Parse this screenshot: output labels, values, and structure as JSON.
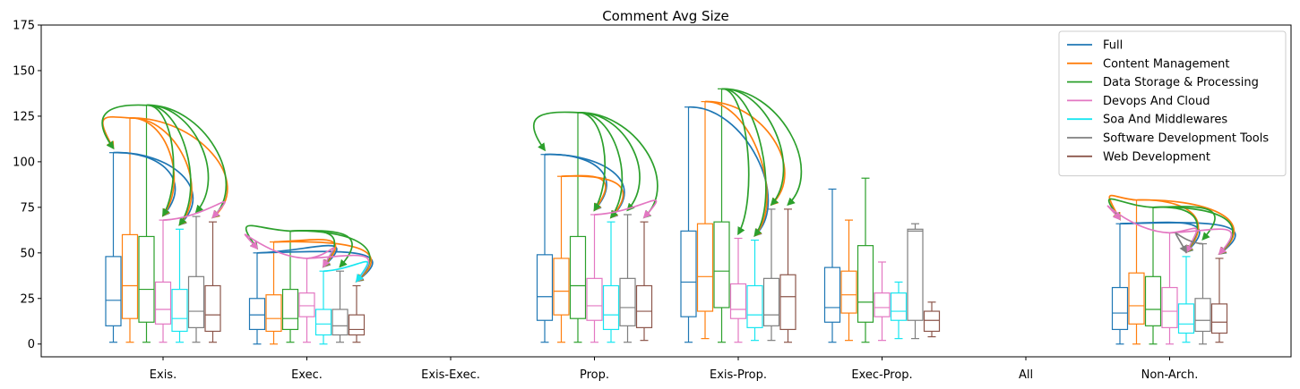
{
  "chart_data": {
    "type": "box",
    "title": "Comment Avg Size",
    "xlabel": "",
    "ylabel": "",
    "ylim": [
      -7,
      175
    ],
    "yticks": [
      0,
      25,
      50,
      75,
      100,
      125,
      150,
      175
    ],
    "grid": false,
    "legend_position": "top-right",
    "categories": [
      "Exis.",
      "Exec.",
      "Exis-Exec.",
      "Prop.",
      "Exis-Prop.",
      "Exec-Prop.",
      "All",
      "Non-Arch."
    ],
    "series": [
      {
        "name": "Full",
        "color": "#1f77b4",
        "boxes": [
          {
            "min": 1,
            "q1": 10,
            "median": 24,
            "q3": 48,
            "max": 105
          },
          {
            "min": 0,
            "q1": 8,
            "median": 16,
            "q3": 25,
            "max": 50
          },
          null,
          {
            "min": 1,
            "q1": 13,
            "median": 26,
            "q3": 49,
            "max": 104
          },
          {
            "min": 1,
            "q1": 15,
            "median": 34,
            "q3": 62,
            "max": 130
          },
          {
            "min": 1,
            "q1": 12,
            "median": 20,
            "q3": 42,
            "max": 85
          },
          null,
          {
            "min": 0,
            "q1": 8,
            "median": 17,
            "q3": 31,
            "max": 66
          }
        ]
      },
      {
        "name": "Content Management",
        "color": "#ff7f0e",
        "boxes": [
          {
            "min": 1,
            "q1": 14,
            "median": 32,
            "q3": 60,
            "max": 124
          },
          {
            "min": 0,
            "q1": 7,
            "median": 14,
            "q3": 27,
            "max": 56
          },
          null,
          {
            "min": 1,
            "q1": 16,
            "median": 29,
            "q3": 47,
            "max": 92
          },
          {
            "min": 3,
            "q1": 18,
            "median": 37,
            "q3": 66,
            "max": 133
          },
          {
            "min": 2,
            "q1": 17,
            "median": 27,
            "q3": 40,
            "max": 68
          },
          null,
          {
            "min": 0,
            "q1": 11,
            "median": 21,
            "q3": 39,
            "max": 79
          }
        ]
      },
      {
        "name": "Data Storage & Processing",
        "color": "#2ca02c",
        "boxes": [
          {
            "min": 1,
            "q1": 12,
            "median": 30,
            "q3": 59,
            "max": 131
          },
          {
            "min": 1,
            "q1": 8,
            "median": 14,
            "q3": 30,
            "max": 62
          },
          null,
          {
            "min": 1,
            "q1": 14,
            "median": 32,
            "q3": 59,
            "max": 127
          },
          {
            "min": 1,
            "q1": 20,
            "median": 40,
            "q3": 67,
            "max": 140
          },
          {
            "min": 1,
            "q1": 12,
            "median": 23,
            "q3": 54,
            "max": 91
          },
          null,
          {
            "min": 0,
            "q1": 10,
            "median": 19,
            "q3": 37,
            "max": 75
          }
        ]
      },
      {
        "name": "Devops And Cloud",
        "color": "#e377c2",
        "boxes": [
          {
            "min": 1,
            "q1": 11,
            "median": 19,
            "q3": 34,
            "max": 68
          },
          {
            "min": 1,
            "q1": 15,
            "median": 21,
            "q3": 28,
            "max": 47
          },
          null,
          {
            "min": 1,
            "q1": 13,
            "median": 21,
            "q3": 36,
            "max": 71
          },
          {
            "min": 1,
            "q1": 14,
            "median": 19,
            "q3": 33,
            "max": 58
          },
          {
            "min": 2,
            "q1": 15,
            "median": 20,
            "q3": 28,
            "max": 45
          },
          null,
          {
            "min": 0,
            "q1": 9,
            "median": 18,
            "q3": 31,
            "max": 61
          }
        ]
      },
      {
        "name": "Soa And Middlewares",
        "color": "#17e6f0",
        "boxes": [
          {
            "min": 1,
            "q1": 7,
            "median": 14,
            "q3": 30,
            "max": 63
          },
          {
            "min": 0,
            "q1": 5,
            "median": 11,
            "q3": 19,
            "max": 40
          },
          null,
          {
            "min": 1,
            "q1": 8,
            "median": 16,
            "q3": 32,
            "max": 67
          },
          {
            "min": 2,
            "q1": 9,
            "median": 16,
            "q3": 32,
            "max": 57
          },
          {
            "min": 3,
            "q1": 13,
            "median": 18,
            "q3": 28,
            "max": 34
          },
          null,
          {
            "min": 1,
            "q1": 6,
            "median": 11,
            "q3": 22,
            "max": 48
          }
        ]
      },
      {
        "name": "Software Development Tools",
        "color": "#7f7f7f",
        "boxes": [
          {
            "min": 1,
            "q1": 9,
            "median": 18,
            "q3": 37,
            "max": 70
          },
          {
            "min": 1,
            "q1": 5,
            "median": 10,
            "q3": 19,
            "max": 40
          },
          null,
          {
            "min": 1,
            "q1": 10,
            "median": 20,
            "q3": 36,
            "max": 71
          },
          {
            "min": 2,
            "q1": 10,
            "median": 16,
            "q3": 36,
            "max": 74
          },
          {
            "min": 3,
            "q1": 13,
            "median": 62,
            "q3": 63,
            "max": 66
          },
          null,
          {
            "min": 0,
            "q1": 7,
            "median": 13,
            "q3": 25,
            "max": 55
          }
        ]
      },
      {
        "name": "Web Development",
        "color": "#8c564b",
        "boxes": [
          {
            "min": 1,
            "q1": 7,
            "median": 16,
            "q3": 32,
            "max": 67
          },
          {
            "min": 1,
            "q1": 5,
            "median": 8,
            "q3": 16,
            "max": 32
          },
          null,
          {
            "min": 2,
            "q1": 9,
            "median": 18,
            "q3": 32,
            "max": 67
          },
          {
            "min": 1,
            "q1": 8,
            "median": 26,
            "q3": 38,
            "max": 74
          },
          {
            "min": 4,
            "q1": 7,
            "median": 13,
            "q3": 18,
            "max": 23
          },
          null,
          {
            "min": 1,
            "q1": 6,
            "median": 12,
            "q3": 22,
            "max": 47
          }
        ]
      }
    ],
    "arrows": [
      {
        "category": "Exis.",
        "from": 0,
        "to": 3
      },
      {
        "category": "Exis.",
        "from": 0,
        "to": 4
      },
      {
        "category": "Exis.",
        "from": 1,
        "to": 0
      },
      {
        "category": "Exis.",
        "from": 1,
        "to": 3
      },
      {
        "category": "Exis.",
        "from": 1,
        "to": 4
      },
      {
        "category": "Exis.",
        "from": 1,
        "to": 6
      },
      {
        "category": "Exis.",
        "from": 2,
        "to": 0
      },
      {
        "category": "Exis.",
        "from": 2,
        "to": 3
      },
      {
        "category": "Exis.",
        "from": 2,
        "to": 4
      },
      {
        "category": "Exis.",
        "from": 2,
        "to": 5
      },
      {
        "category": "Exis.",
        "from": 2,
        "to": 6
      },
      {
        "category": "Exis.",
        "from": 3,
        "to": 6
      },
      {
        "category": "Exec.",
        "from": 0,
        "to": 4
      },
      {
        "category": "Exec.",
        "from": 0,
        "to": 6
      },
      {
        "category": "Exec.",
        "from": 1,
        "to": 4
      },
      {
        "category": "Exec.",
        "from": 1,
        "to": 6
      },
      {
        "category": "Exec.",
        "from": 2,
        "to": 0
      },
      {
        "category": "Exec.",
        "from": 2,
        "to": 4
      },
      {
        "category": "Exec.",
        "from": 2,
        "to": 5
      },
      {
        "category": "Exec.",
        "from": 2,
        "to": 6
      },
      {
        "category": "Exec.",
        "from": 3,
        "to": 0
      },
      {
        "category": "Exec.",
        "from": 3,
        "to": 4
      },
      {
        "category": "Exec.",
        "from": 3,
        "to": 6
      },
      {
        "category": "Exec.",
        "from": 4,
        "to": 6
      },
      {
        "category": "Prop.",
        "from": 0,
        "to": 3
      },
      {
        "category": "Prop.",
        "from": 0,
        "to": 4
      },
      {
        "category": "Prop.",
        "from": 1,
        "to": 3
      },
      {
        "category": "Prop.",
        "from": 1,
        "to": 4
      },
      {
        "category": "Prop.",
        "from": 2,
        "to": 0
      },
      {
        "category": "Prop.",
        "from": 2,
        "to": 3
      },
      {
        "category": "Prop.",
        "from": 2,
        "to": 4
      },
      {
        "category": "Prop.",
        "from": 2,
        "to": 5
      },
      {
        "category": "Prop.",
        "from": 2,
        "to": 6
      },
      {
        "category": "Prop.",
        "from": 3,
        "to": 6
      },
      {
        "category": "Exis-Prop.",
        "from": 0,
        "to": 4
      },
      {
        "category": "Exis-Prop.",
        "from": 1,
        "to": 4
      },
      {
        "category": "Exis-Prop.",
        "from": 1,
        "to": 5
      },
      {
        "category": "Exis-Prop.",
        "from": 2,
        "to": 3
      },
      {
        "category": "Exis-Prop.",
        "from": 2,
        "to": 4
      },
      {
        "category": "Exis-Prop.",
        "from": 2,
        "to": 5
      },
      {
        "category": "Exis-Prop.",
        "from": 2,
        "to": 6
      },
      {
        "category": "Non-Arch.",
        "from": 0,
        "to": 4
      },
      {
        "category": "Non-Arch.",
        "from": 0,
        "to": 6
      },
      {
        "category": "Non-Arch.",
        "from": 1,
        "to": 0
      },
      {
        "category": "Non-Arch.",
        "from": 1,
        "to": 4
      },
      {
        "category": "Non-Arch.",
        "from": 1,
        "to": 6
      },
      {
        "category": "Non-Arch.",
        "from": 2,
        "to": 0
      },
      {
        "category": "Non-Arch.",
        "from": 2,
        "to": 4
      },
      {
        "category": "Non-Arch.",
        "from": 2,
        "to": 5
      },
      {
        "category": "Non-Arch.",
        "from": 2,
        "to": 6
      },
      {
        "category": "Non-Arch.",
        "from": 3,
        "to": 0
      },
      {
        "category": "Non-Arch.",
        "from": 3,
        "to": 4
      },
      {
        "category": "Non-Arch.",
        "from": 3,
        "to": 6
      },
      {
        "category": "Non-Arch.",
        "from": 5,
        "to": 4
      }
    ]
  }
}
